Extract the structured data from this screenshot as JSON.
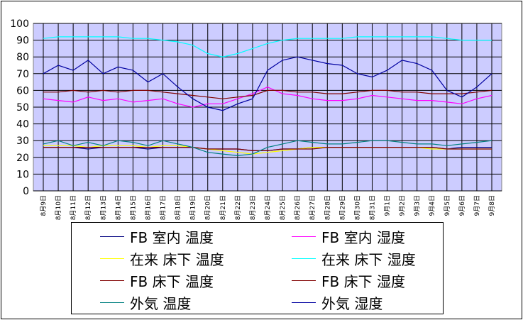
{
  "colors": {
    "plot_bg": "#ccccff",
    "grid": "#000000"
  },
  "chart_data": {
    "type": "line",
    "title": "",
    "xlabel": "",
    "ylabel": "",
    "ylim": [
      0,
      100
    ],
    "yticks": [
      0,
      10,
      20,
      30,
      40,
      50,
      60,
      70,
      80,
      90,
      100
    ],
    "x_ticks": [
      "8月9日",
      "8月10日",
      "8月11日",
      "8月12日",
      "8月13日",
      "8月14日",
      "8月15日",
      "8月16日",
      "8月17日",
      "8月18日",
      "8月19日",
      "8月20日",
      "8月21日",
      "8月22日",
      "8月23日",
      "8月24日",
      "8月25日",
      "8月26日",
      "8月27日",
      "8月28日",
      "8月29日",
      "8月30日",
      "8月31日",
      "9月1日",
      "9月2日",
      "9月3日",
      "9月4日",
      "9月5日",
      "9月6日",
      "9月7日",
      "9月8日"
    ],
    "grid": true,
    "legend_position": "bottom",
    "series": [
      {
        "name": "FB 室内 温度",
        "color": "#000080",
        "values": [
          26,
          26,
          26,
          25,
          26,
          26,
          26,
          25,
          26,
          26,
          26,
          25,
          25,
          25,
          24,
          24,
          25,
          25,
          26,
          26,
          26,
          26,
          26,
          26,
          26,
          26,
          26,
          25,
          26,
          26,
          26
        ]
      },
      {
        "name": "FB 室内 湿度",
        "color": "#ff00ff",
        "values": [
          55,
          54,
          53,
          56,
          54,
          55,
          53,
          54,
          55,
          52,
          50,
          52,
          52,
          55,
          58,
          62,
          58,
          57,
          55,
          54,
          54,
          55,
          57,
          56,
          55,
          54,
          54,
          53,
          52,
          55,
          57
        ]
      },
      {
        "name": "在来 床下 温度",
        "color": "#ffff00",
        "values": [
          27,
          27,
          27,
          26,
          27,
          27,
          27,
          26,
          27,
          27,
          26,
          25,
          24,
          23,
          22,
          23,
          24,
          25,
          26,
          26,
          26,
          26,
          26,
          26,
          26,
          26,
          25,
          25,
          25,
          25,
          25
        ]
      },
      {
        "name": "在来 床下 湿度",
        "color": "#00ffff",
        "values": [
          91,
          92,
          92,
          92,
          92,
          92,
          91,
          91,
          90,
          89,
          87,
          82,
          80,
          82,
          85,
          88,
          90,
          91,
          91,
          91,
          91,
          92,
          92,
          92,
          92,
          92,
          92,
          91,
          90,
          90,
          90
        ]
      },
      {
        "name": "FB 床下 温度",
        "color": "#800000",
        "values": [
          26,
          26,
          26,
          26,
          26,
          26,
          26,
          26,
          26,
          26,
          26,
          25,
          25,
          25,
          24,
          24,
          25,
          25,
          25,
          26,
          26,
          26,
          26,
          26,
          26,
          26,
          26,
          25,
          25,
          25,
          25
        ]
      },
      {
        "name": "FB 床下 湿度",
        "color": "#800000",
        "values": [
          59,
          59,
          60,
          59,
          60,
          59,
          60,
          60,
          59,
          58,
          57,
          56,
          55,
          56,
          57,
          60,
          60,
          59,
          59,
          58,
          58,
          59,
          60,
          60,
          59,
          59,
          58,
          58,
          58,
          59,
          60
        ]
      },
      {
        "name": "外気 温度",
        "color": "#008080",
        "values": [
          28,
          30,
          27,
          29,
          27,
          30,
          29,
          27,
          30,
          28,
          26,
          23,
          22,
          21,
          22,
          26,
          28,
          30,
          29,
          28,
          28,
          29,
          30,
          30,
          29,
          28,
          28,
          27,
          28,
          29,
          30
        ]
      },
      {
        "name": "外気 湿度",
        "color": "#0000a0",
        "values": [
          70,
          75,
          72,
          78,
          70,
          74,
          72,
          65,
          70,
          62,
          55,
          50,
          48,
          52,
          55,
          72,
          78,
          80,
          78,
          76,
          75,
          70,
          68,
          72,
          78,
          76,
          72,
          60,
          56,
          62,
          70
        ]
      }
    ]
  }
}
